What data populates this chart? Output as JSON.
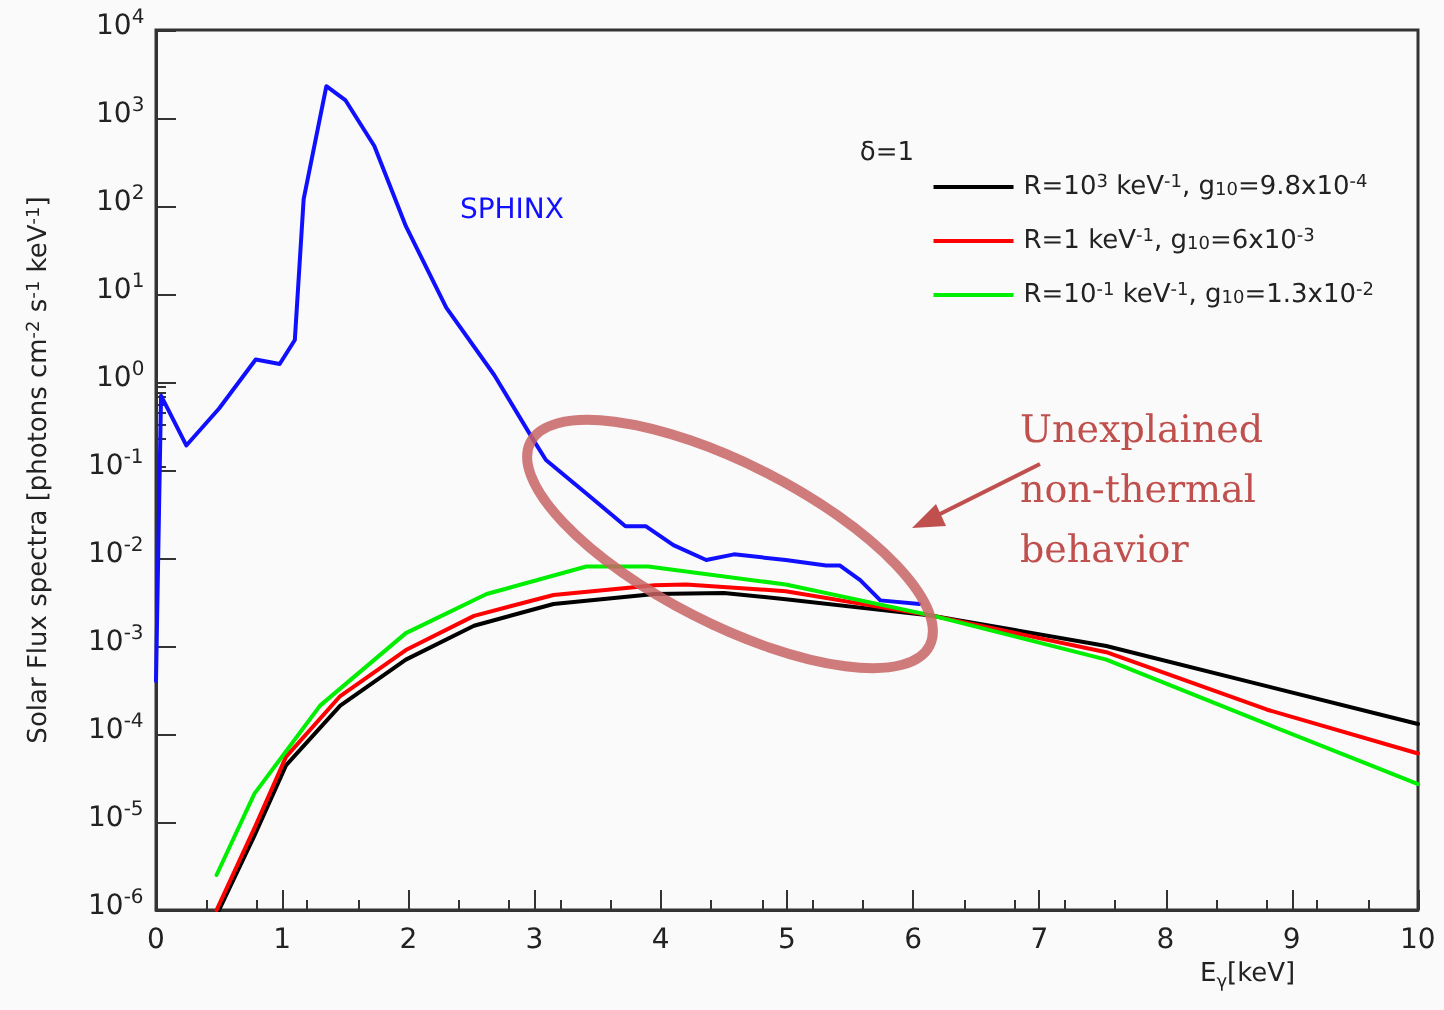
{
  "chart_data": {
    "type": "line",
    "xlabel": "E$_{γ}$[keV]",
    "ylabel": "Solar Flux spectra [photons cm$^{-2}$ s$^{-1}$ keV$^{-1}$]",
    "legend_title": "δ=1",
    "annotations": [
      "Unexplained non-thermal behavior"
    ],
    "xlim": [
      0,
      10
    ],
    "xticks": [
      0,
      1,
      2,
      3,
      4,
      5,
      6,
      7,
      8,
      9,
      10
    ],
    "ylim": [
      1e-06,
      10000
    ],
    "yticks": [
      {
        "value": 1e-06,
        "label": "10$^{-6}$"
      },
      {
        "value": 1e-05,
        "label": "10$^{-5}$"
      },
      {
        "value": 0.0001,
        "label": "10$^{-4}$"
      },
      {
        "value": 0.001,
        "label": "10$^{-3}$"
      },
      {
        "value": 0.01,
        "label": "10$^{-2}$"
      },
      {
        "value": 0.1,
        "label": "10$^{-1}$"
      },
      {
        "value": 1,
        "label": "10$^{0}$"
      },
      {
        "value": 10,
        "label": "10$^{1}$"
      },
      {
        "value": 100,
        "label": "10$^{2}$"
      },
      {
        "value": 1000,
        "label": "10$^{3}$"
      },
      {
        "value": 10000,
        "label": "10$^{4}$"
      }
    ],
    "log": "y",
    "grid": false,
    "legend": "top right",
    "marker": "none",
    "line_style": "solid",
    "series": [
      {
        "name": "SPHINX",
        "color": "#1010ff",
        "x": [
          0,
          0.04,
          0.24,
          0.5,
          0.79,
          0.98,
          1.1,
          1.17,
          1.35,
          1.5,
          1.73,
          1.98,
          2.3,
          2.68,
          2.99,
          3.09,
          3.41,
          3.72,
          3.88,
          4.1,
          4.36,
          4.58,
          4.99,
          5.31,
          5.42,
          5.58,
          5.74,
          6.05
        ],
        "values": [
          0.0004,
          0.7,
          0.19,
          0.5,
          1.8,
          1.6,
          3,
          120,
          2300,
          1600,
          480,
          59,
          7,
          1.2,
          0.22,
          0.13,
          0.054,
          0.023,
          0.023,
          0.014,
          0.0095,
          0.011,
          0.0095,
          0.0082,
          0.0082,
          0.0056,
          0.0033,
          0.003
        ]
      },
      {
        "name": "R=10$^{3}$ keV$^{-1}$, g$_{10}$=9.8x10$^{-4}$",
        "color": "#000000",
        "x": [
          0.5,
          0.78,
          1.03,
          1.46,
          1.98,
          2.52,
          3.15,
          3.95,
          4.5,
          4.99,
          6.16,
          7.53,
          8.8,
          10
        ],
        "values": [
          1e-06,
          7e-06,
          4.4e-05,
          0.00021,
          0.0007,
          0.0017,
          0.003,
          0.0039,
          0.004,
          0.0034,
          0.0022,
          0.001,
          0.00035,
          0.00013
        ]
      },
      {
        "name": "R=1 keV$^{-1}$, g$_{10}$=6x10$^{-3}$",
        "color": "#ff0000",
        "x": [
          0.48,
          0.78,
          1.03,
          1.46,
          1.98,
          2.52,
          3.15,
          3.95,
          4.2,
          4.99,
          6.16,
          7.53,
          8.8,
          10
        ],
        "values": [
          1e-06,
          8.5e-06,
          5.5e-05,
          0.00027,
          0.0009,
          0.0022,
          0.0038,
          0.0049,
          0.005,
          0.0042,
          0.0022,
          0.00085,
          0.00019,
          6e-05
        ]
      },
      {
        "name": "R=10$^{-1}$ keV$^{-1}$, g$_{10}$=1.3x10$^{-2}$",
        "color": "#00ee00",
        "x": [
          0.48,
          0.78,
          1.3,
          1.98,
          2.62,
          3.41,
          3.9,
          4.99,
          6.16,
          7.53,
          8.8,
          10
        ],
        "values": [
          2.5e-06,
          2.1e-05,
          0.00021,
          0.0014,
          0.0039,
          0.008,
          0.008,
          0.005,
          0.0022,
          0.0007,
          0.00013,
          2.7e-05
        ]
      }
    ]
  }
}
